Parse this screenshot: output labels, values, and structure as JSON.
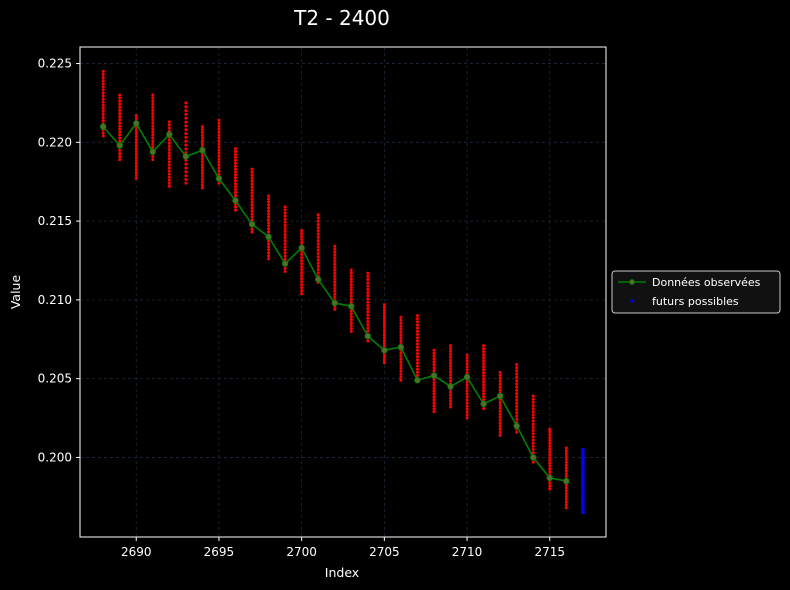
{
  "chart_data": {
    "type": "line",
    "title": "T2 - 2400",
    "xlabel": "Index",
    "ylabel": "Value",
    "xlim": [
      2686.6,
      2718.4
    ],
    "ylim": [
      0.19495,
      0.22605
    ],
    "x_ticks": [
      2690,
      2695,
      2700,
      2705,
      2710,
      2715
    ],
    "y_ticks": [
      0.2,
      0.205,
      0.21,
      0.215,
      0.22,
      0.225
    ],
    "grid": true,
    "legend_position": "right",
    "colors": {
      "background": "#000000",
      "axes_frame": "#ffffff",
      "grid": "#1e2a3a",
      "observed": "#008000",
      "observed_marker": "#556b2f",
      "samples": "#ff0000",
      "future": "#0000ff"
    },
    "series": [
      {
        "name": "Données observées",
        "kind": "line",
        "x": [
          2688,
          2689,
          2690,
          2691,
          2692,
          2693,
          2694,
          2695,
          2696,
          2697,
          2698,
          2699,
          2700,
          2701,
          2702,
          2703,
          2704,
          2705,
          2706,
          2707,
          2708,
          2709,
          2710,
          2711,
          2712,
          2713,
          2714,
          2715,
          2716
        ],
        "y": [
          0.221,
          0.2198,
          0.2212,
          0.2194,
          0.2205,
          0.2191,
          0.2195,
          0.2177,
          0.2163,
          0.2148,
          0.214,
          0.2123,
          0.2133,
          0.2113,
          0.2098,
          0.2096,
          0.2077,
          0.2068,
          0.207,
          0.2049,
          0.2052,
          0.2045,
          0.2051,
          0.2034,
          0.2039,
          0.202,
          0.2,
          0.1987,
          0.1985
        ]
      },
      {
        "name": "",
        "kind": "sample-ranges",
        "x": [
          2688,
          2689,
          2690,
          2691,
          2692,
          2693,
          2694,
          2695,
          2696,
          2697,
          2698,
          2699,
          2700,
          2701,
          2702,
          2703,
          2704,
          2705,
          2706,
          2707,
          2708,
          2709,
          2710,
          2711,
          2712,
          2713,
          2714,
          2715,
          2716
        ],
        "low": [
          0.2204,
          0.2189,
          0.2177,
          0.2189,
          0.2172,
          0.2174,
          0.2171,
          0.2174,
          0.2157,
          0.2143,
          0.2126,
          0.2118,
          0.2104,
          0.2111,
          0.2094,
          0.208,
          0.2074,
          0.206,
          0.2049,
          0.2048,
          0.2029,
          0.2032,
          0.2025,
          0.2031,
          0.2014,
          0.2016,
          0.1997,
          0.198,
          0.1968
        ],
        "high": [
          0.2245,
          0.223,
          0.2217,
          0.223,
          0.2213,
          0.2225,
          0.221,
          0.2214,
          0.2196,
          0.2183,
          0.2166,
          0.2159,
          0.2144,
          0.2154,
          0.2134,
          0.2119,
          0.2117,
          0.2097,
          0.2089,
          0.209,
          0.2068,
          0.2071,
          0.2065,
          0.2071,
          0.2054,
          0.2059,
          0.2039,
          0.2018,
          0.2006
        ]
      },
      {
        "name": "futurs possibles",
        "kind": "scatter",
        "x": [
          2717
        ],
        "low": [
          0.1965
        ],
        "high": [
          0.2005
        ]
      }
    ]
  }
}
